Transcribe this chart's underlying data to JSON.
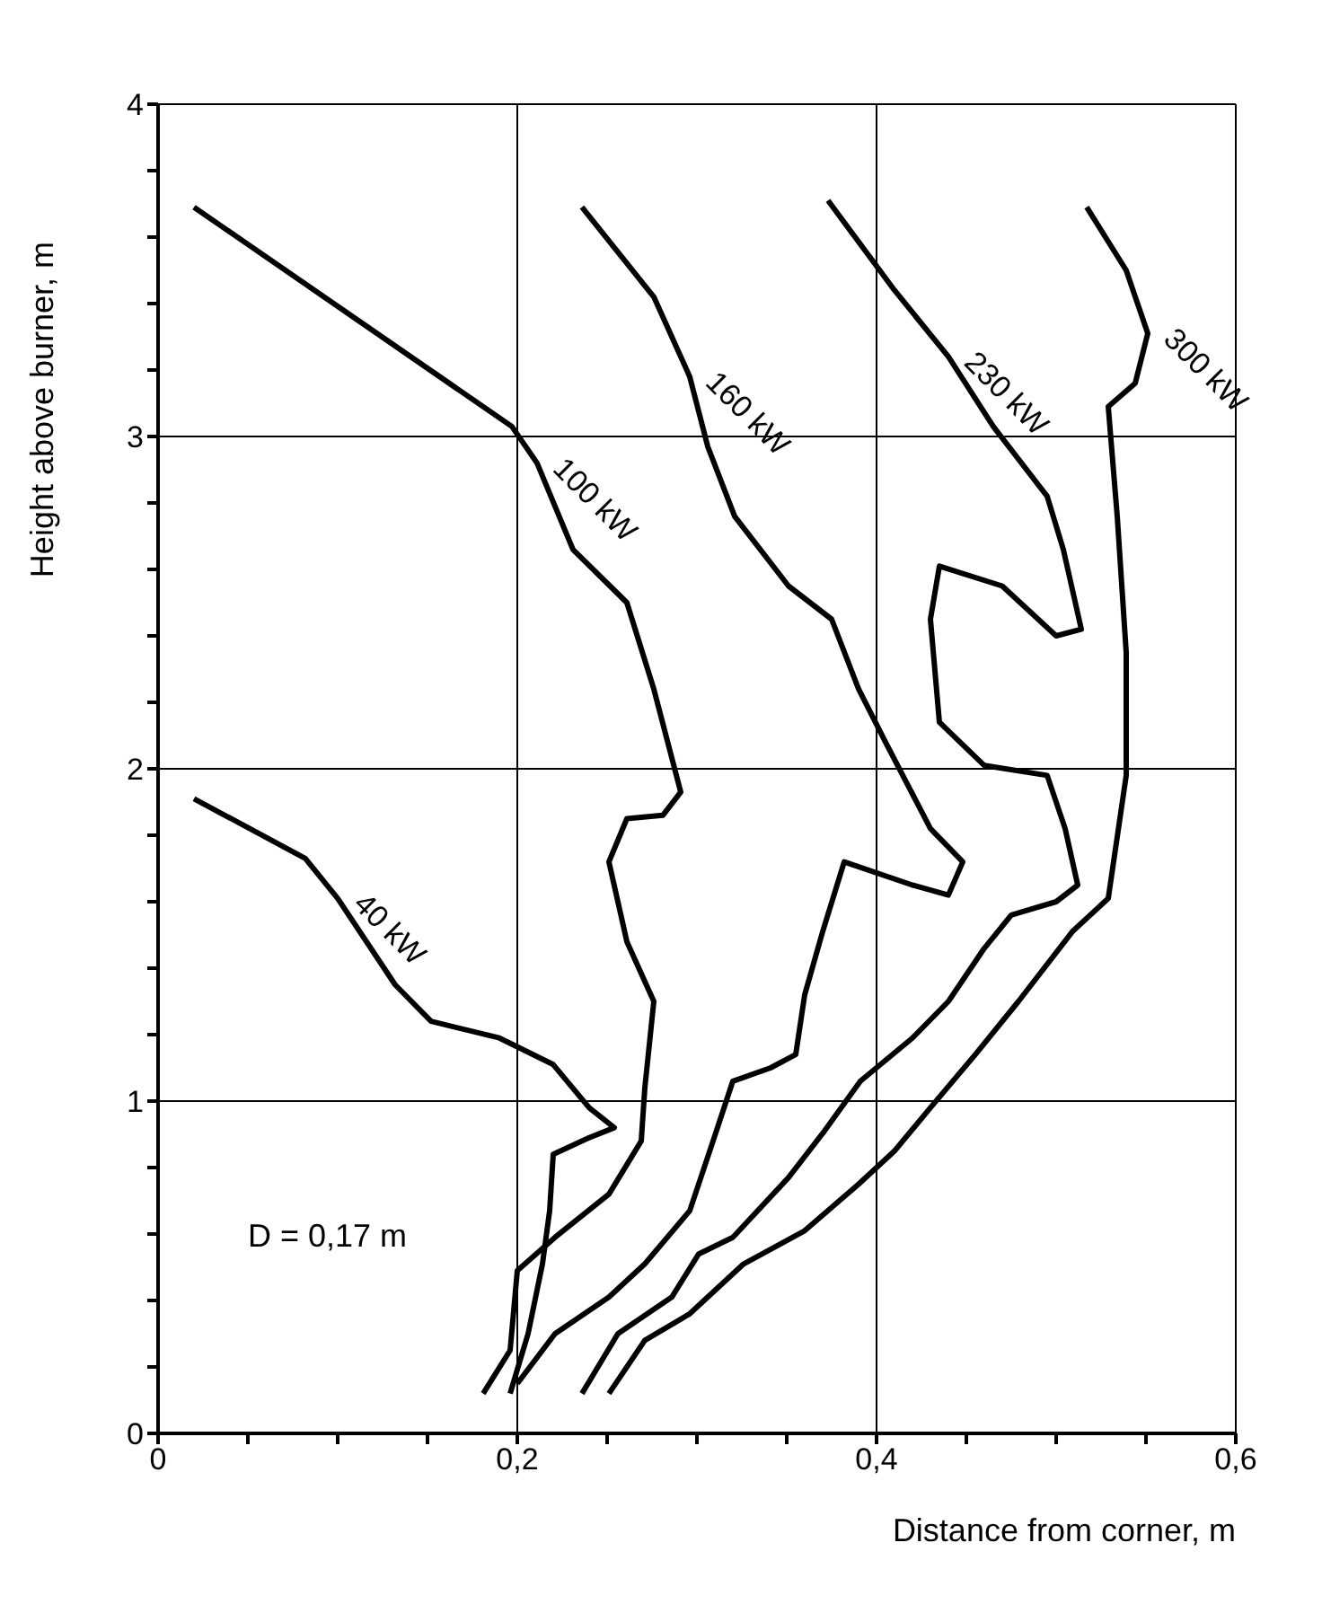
{
  "chart_data": {
    "type": "line",
    "xlabel": "Distance from corner, m",
    "ylabel": "Height above burner, m",
    "annotations": [
      "D = 0,17 m"
    ],
    "grid": true,
    "legend": false,
    "marker": "none",
    "line_style": "solid",
    "xlim": [
      0,
      0.6
    ],
    "ylim": [
      0,
      4
    ],
    "xticks": [
      0,
      {
        "value": 0.05,
        "label": null
      },
      {
        "value": 0.1,
        "label": null
      },
      {
        "value": 0.15,
        "label": null
      },
      {
        "value": 0.2,
        "label": "0,2"
      },
      {
        "value": 0.25,
        "label": null
      },
      {
        "value": 0.3,
        "label": null
      },
      {
        "value": 0.35,
        "label": null
      },
      {
        "value": 0.4,
        "label": "0,4"
      },
      {
        "value": 0.45,
        "label": null
      },
      {
        "value": 0.5,
        "label": null
      },
      {
        "value": 0.55,
        "label": null
      },
      {
        "value": 0.6,
        "label": "0,6"
      }
    ],
    "yticks": [
      0,
      {
        "value": 0.2,
        "label": null
      },
      {
        "value": 0.4,
        "label": null
      },
      {
        "value": 0.6,
        "label": null
      },
      {
        "value": 0.8,
        "label": null
      },
      1,
      {
        "value": 1.2,
        "label": null
      },
      {
        "value": 1.4,
        "label": null
      },
      {
        "value": 1.6,
        "label": null
      },
      {
        "value": 1.8,
        "label": null
      },
      2,
      {
        "value": 2.2,
        "label": null
      },
      {
        "value": 2.4,
        "label": null
      },
      {
        "value": 2.6,
        "label": null
      },
      {
        "value": 2.8,
        "label": null
      },
      3,
      {
        "value": 3.2,
        "label": null
      },
      {
        "value": 3.4,
        "label": null
      },
      {
        "value": 3.6,
        "label": null
      },
      {
        "value": 3.8,
        "label": null
      },
      4
    ],
    "series": [
      {
        "name": "40 kW",
        "color": "#000000",
        "x": [
          0.02,
          0.082,
          0.1,
          0.132,
          0.152,
          0.19,
          0.22,
          0.24,
          0.254,
          0.24,
          0.22,
          0.218,
          0.214,
          0.206,
          0.196
        ],
        "values": [
          1.91,
          1.73,
          1.61,
          1.35,
          1.24,
          1.19,
          1.11,
          0.98,
          0.92,
          0.89,
          0.84,
          0.67,
          0.51,
          0.3,
          0.12
        ]
      },
      {
        "name": "100 kW",
        "color": "#000000",
        "x": [
          0.02,
          0.197,
          0.211,
          0.231,
          0.261,
          0.276,
          0.291,
          0.281,
          0.261,
          0.251,
          0.261,
          0.276,
          0.271,
          0.269,
          0.251,
          0.221,
          0.2,
          0.196,
          0.181
        ],
        "values": [
          3.69,
          3.03,
          2.92,
          2.66,
          2.5,
          2.24,
          1.93,
          1.86,
          1.85,
          1.72,
          1.48,
          1.3,
          1.04,
          0.88,
          0.72,
          0.59,
          0.49,
          0.25,
          0.12
        ]
      },
      {
        "name": "160 kW",
        "color": "#000000",
        "x": [
          0.236,
          0.276,
          0.296,
          0.306,
          0.321,
          0.351,
          0.375,
          0.39,
          0.405,
          0.43,
          0.448,
          0.44,
          0.42,
          0.382,
          0.37,
          0.36,
          0.355,
          0.341,
          0.32,
          0.309,
          0.296,
          0.271,
          0.251,
          0.221,
          0.2
        ],
        "values": [
          3.69,
          3.42,
          3.18,
          2.97,
          2.76,
          2.55,
          2.45,
          2.24,
          2.08,
          1.82,
          1.72,
          1.62,
          1.65,
          1.72,
          1.51,
          1.32,
          1.14,
          1.1,
          1.06,
          0.88,
          0.67,
          0.51,
          0.41,
          0.3,
          0.15
        ]
      },
      {
        "name": "230 kW",
        "color": "#000000",
        "x": [
          0.373,
          0.41,
          0.44,
          0.465,
          0.495,
          0.504,
          0.514,
          0.5,
          0.47,
          0.435,
          0.43,
          0.435,
          0.46,
          0.495,
          0.505,
          0.512,
          0.5,
          0.475,
          0.46,
          0.44,
          0.42,
          0.391,
          0.371,
          0.351,
          0.32,
          0.301,
          0.286,
          0.256,
          0.236
        ],
        "values": [
          3.71,
          3.44,
          3.24,
          3.03,
          2.82,
          2.66,
          2.42,
          2.4,
          2.55,
          2.61,
          2.45,
          2.14,
          2.01,
          1.98,
          1.82,
          1.65,
          1.6,
          1.56,
          1.46,
          1.3,
          1.19,
          1.06,
          0.91,
          0.77,
          0.59,
          0.54,
          0.41,
          0.3,
          0.12
        ]
      },
      {
        "name": "300 kW",
        "color": "#000000",
        "x": [
          0.517,
          0.539,
          0.551,
          0.544,
          0.529,
          0.534,
          0.539,
          0.539,
          0.529,
          0.509,
          0.479,
          0.455,
          0.43,
          0.41,
          0.39,
          0.36,
          0.326,
          0.296,
          0.271,
          0.251
        ],
        "values": [
          3.69,
          3.5,
          3.31,
          3.16,
          3.09,
          2.76,
          2.35,
          1.98,
          1.61,
          1.51,
          1.3,
          1.14,
          0.98,
          0.85,
          0.75,
          0.61,
          0.51,
          0.36,
          0.28,
          0.12
        ]
      }
    ]
  }
}
